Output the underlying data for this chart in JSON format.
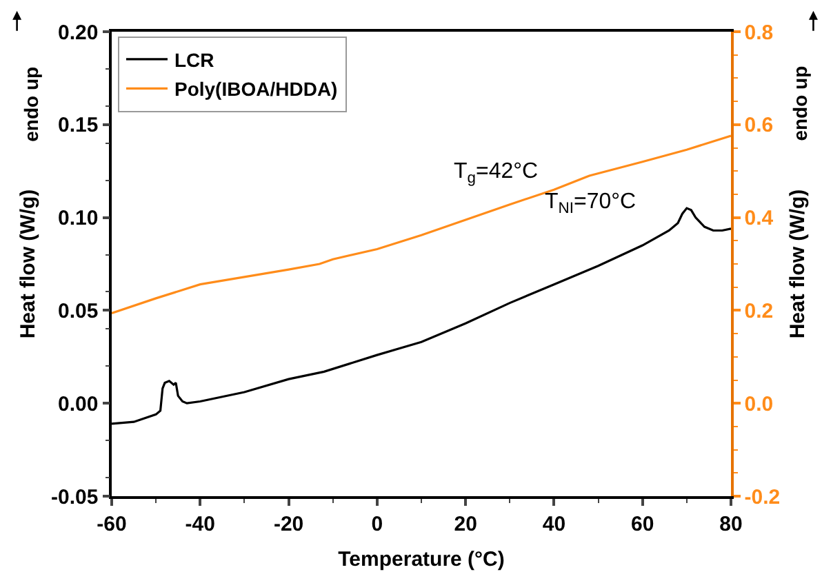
{
  "chart_data": {
    "type": "line",
    "xlabel": "Temperature (°C)",
    "ylabel": "Heat flow (W/g)",
    "y2label": "Heat flow (W/g)",
    "xlim": [
      -60,
      80
    ],
    "xticks": [
      -60,
      -40,
      -20,
      0,
      20,
      40,
      60,
      80
    ],
    "ylim": [
      -0.05,
      0.2
    ],
    "yticks": [
      -0.05,
      {
        "value": 0,
        "label": "0.00"
      },
      0.05,
      {
        "value": 0.1,
        "label": "0.10"
      },
      0.15,
      {
        "value": 0.2,
        "label": "0.20"
      }
    ],
    "y2lim": [
      -0.2,
      0.8
    ],
    "y2ticks": [
      -0.2,
      {
        "value": 0,
        "label": "0.0"
      },
      0.2,
      0.4,
      0.6,
      0.8
    ],
    "legend": "top left",
    "annotations": [
      "T$_{g}$=42°C",
      "T$_{NI}$=70°C",
      "endo up",
      "endo up"
    ],
    "series": [
      {
        "name": "LCR",
        "color": "#000000",
        "x": [
          -60,
          -55,
          -50,
          -49,
          -48.5,
          -48,
          -47,
          -46,
          -45.5,
          -45,
          -44,
          -43,
          -40,
          -30,
          -20,
          -12,
          0,
          10,
          20,
          30,
          40,
          50,
          60,
          66,
          68,
          69,
          70,
          71,
          72,
          74,
          76,
          78,
          80
        ],
        "values": [
          -0.011,
          -0.01,
          -0.006,
          -0.004,
          0.008,
          0.011,
          0.012,
          0.01,
          0.011,
          0.004,
          0.001,
          0.0,
          0.001,
          0.006,
          0.013,
          0.017,
          0.026,
          0.033,
          0.043,
          0.054,
          0.064,
          0.074,
          0.085,
          0.093,
          0.097,
          0.102,
          0.105,
          0.104,
          0.1,
          0.095,
          0.093,
          0.093,
          0.094
        ]
      },
      {
        "name": "Poly(IBOA/HDDA)",
        "color": "#ff8c1a",
        "axis": "y2",
        "x": [
          -60,
          -50,
          -40,
          -30,
          -20,
          -13,
          -10,
          0,
          10,
          20,
          30,
          40,
          48,
          60,
          70,
          80
        ],
        "values": [
          0.194,
          0.226,
          0.256,
          0.272,
          0.288,
          0.3,
          0.31,
          0.332,
          0.362,
          0.395,
          0.428,
          0.46,
          0.49,
          0.52,
          0.546,
          0.576
        ]
      }
    ]
  }
}
